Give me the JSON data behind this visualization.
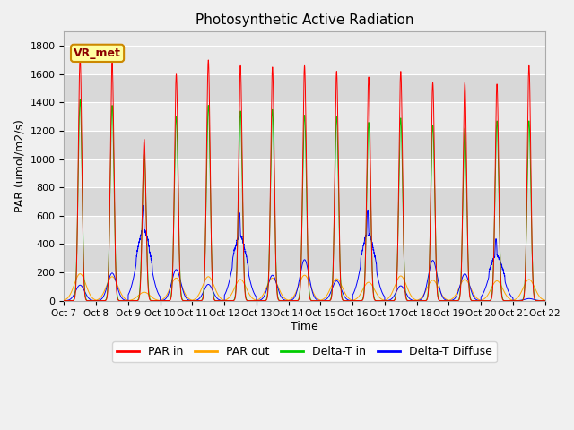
{
  "title": "Photosynthetic Active Radiation",
  "ylabel": "PAR (umol/m2/s)",
  "xlabel": "Time",
  "ylim": [
    0,
    1900
  ],
  "yticks": [
    0,
    200,
    400,
    600,
    800,
    1000,
    1200,
    1400,
    1600,
    1800
  ],
  "xtick_labels": [
    "Oct 7",
    "Oct 8",
    "Oct 9",
    "Oct 10",
    "Oct 11",
    "Oct 12",
    "Oct 13",
    "Oct 14",
    "Oct 15",
    "Oct 16",
    "Oct 17",
    "Oct 18",
    "Oct 19",
    "Oct 20",
    "Oct 21",
    "Oct 22"
  ],
  "legend_labels": [
    "PAR in",
    "PAR out",
    "Delta-T in",
    "Delta-T Diffuse"
  ],
  "legend_colors": [
    "#ff0000",
    "#ffa500",
    "#00cc00",
    "#0000ff"
  ],
  "vr_met_label": "VR_met",
  "background_color": "#f0f0f0",
  "plot_bg_color": "#e8e8e8",
  "grid_color": "#ffffff",
  "band_colors": [
    "#e8e8e8",
    "#d8d8d8"
  ],
  "par_in_peaks": [
    1720,
    1680,
    1140,
    1600,
    1700,
    1660,
    1650,
    1660,
    1620,
    1580,
    1620,
    1540,
    1540,
    1530,
    1660
  ],
  "par_out_peaks": [
    190,
    170,
    60,
    160,
    170,
    150,
    160,
    180,
    155,
    130,
    175,
    145,
    150,
    140,
    150
  ],
  "delta_t_in_peaks": [
    1420,
    1380,
    1050,
    1300,
    1380,
    1340,
    1350,
    1310,
    1300,
    1260,
    1290,
    1240,
    1220,
    1270,
    1270
  ],
  "delta_t_diffuse_peaks": [
    110,
    195,
    640,
    220,
    115,
    590,
    180,
    290,
    140,
    610,
    105,
    285,
    190,
    415,
    15
  ],
  "n_days": 15,
  "pts_per_day": 1440
}
